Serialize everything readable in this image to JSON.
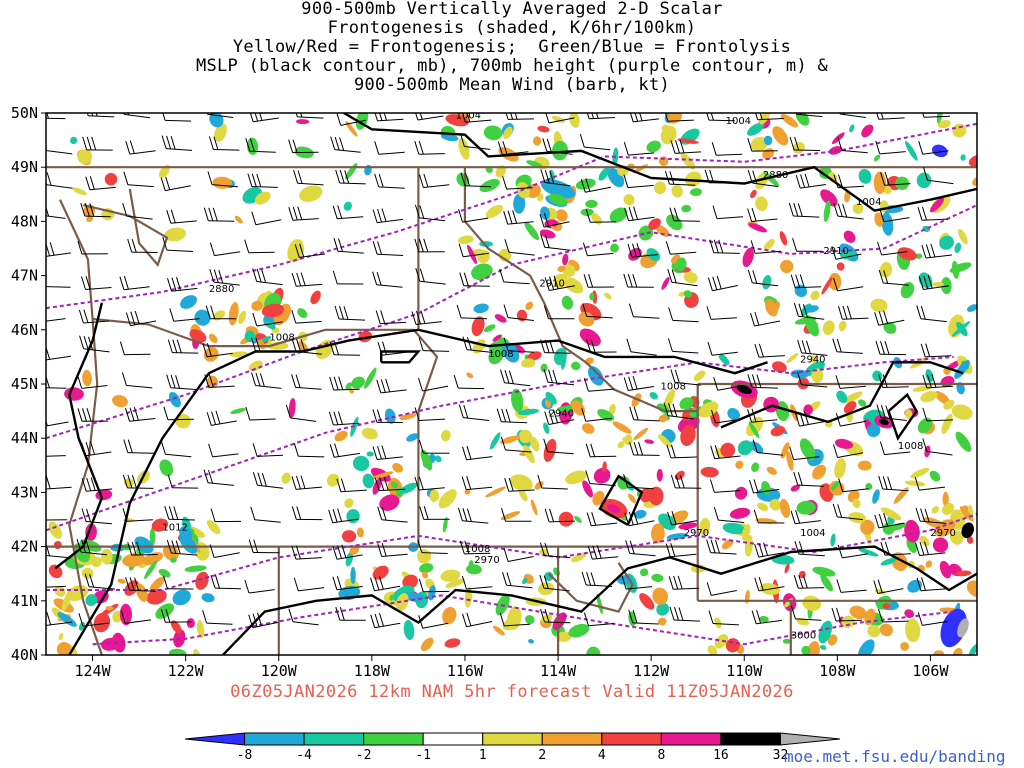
{
  "title_lines": [
    "900-500mb Vertically Averaged 2-D Scalar",
    "Frontogenesis (shaded, K/6hr/100km)",
    "Yellow/Red = Frontogenesis;  Green/Blue = Frontolysis",
    "MSLP (black contour, mb), 700mb height (purple contour, m) &",
    "900-500mb Mean Wind (barb, kt)"
  ],
  "subtitle": "06Z05JAN2026 12km NAM 5hr forecast Valid 11Z05JAN2026",
  "credit": "moe.met.fsu.edu/banding",
  "map": {
    "lon_range": [
      -125,
      -105
    ],
    "lat_range": [
      40,
      50
    ],
    "lat_ticks": [
      "40N",
      "41N",
      "42N",
      "43N",
      "44N",
      "45N",
      "46N",
      "47N",
      "48N",
      "49N",
      "50N"
    ],
    "lon_ticks": [
      "124W",
      "122W",
      "120W",
      "118W",
      "116W",
      "114W",
      "112W",
      "110W",
      "108W",
      "106W"
    ],
    "colors": {
      "state_border": "#7a5c4a",
      "mslp_contour": "#000000",
      "height_contour": "#a020c0",
      "wind_barb": "#000000"
    },
    "mslp_labels": [
      "1004",
      "1004",
      "1004",
      "1008",
      "1008",
      "1008",
      "1008",
      "1012",
      "1004",
      "1008"
    ],
    "height_labels": [
      "2880",
      "2880",
      "2910",
      "2910",
      "2940",
      "2940",
      "2970",
      "2970",
      "2970",
      "3000"
    ]
  },
  "colorbar": {
    "labels": [
      "-8",
      "-4",
      "-2",
      "-1",
      "1",
      "2",
      "4",
      "8",
      "16",
      "32"
    ],
    "colors": [
      "#3030ff",
      "#20a8d8",
      "#18c8a0",
      "#40d040",
      "#ffffff",
      "#e0d840",
      "#f0a030",
      "#f04040",
      "#e81890",
      "#000000",
      "#b0b0b0"
    ]
  }
}
